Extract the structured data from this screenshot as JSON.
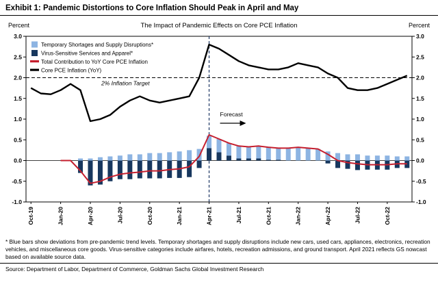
{
  "exhibit": {
    "title": "Exhibit 1: Pandemic Distortions to Core Inflation Should Peak in April and May",
    "footnote": "* Blue bars show deviations from pre-pandemic trend levels.  Temporary shortages and supply disruptions include new cars, used cars, appliances, electronics, recreation vehicles, and miscellaneous core goods. Virus-sensitive categories include airfares, hotels, recreation admissions, and ground transport. April 2021 reflects GS nowcast based on available source data.",
    "source": "Source: Department of Labor, Department of Commerce, Goldman Sachs Global Investment Research"
  },
  "chart_data": {
    "type": "bar",
    "subtype": "stacked-bar-plus-line-combo",
    "title": "The Impact of Pandemic Effects on Core PCE Inflation",
    "ylabel_left": "Percent",
    "ylabel_right": "Percent",
    "ylim": [
      -1.0,
      3.0
    ],
    "ytick_step": 0.5,
    "grid": "dashed line at 2.0 only",
    "legend_position": "top-left",
    "xtick_every": 3,
    "categories": [
      "Oct-19",
      "Nov-19",
      "Dec-19",
      "Jan-20",
      "Feb-20",
      "Mar-20",
      "Apr-20",
      "May-20",
      "Jun-20",
      "Jul-20",
      "Aug-20",
      "Sep-20",
      "Oct-20",
      "Nov-20",
      "Dec-20",
      "Jan-21",
      "Feb-21",
      "Mar-21",
      "Apr-21",
      "May-21",
      "Jun-21",
      "Jul-21",
      "Aug-21",
      "Sep-21",
      "Oct-21",
      "Nov-21",
      "Dec-21",
      "Jan-22",
      "Feb-22",
      "Mar-22",
      "Apr-22",
      "May-22",
      "Jun-22",
      "Jul-22",
      "Aug-22",
      "Sep-22",
      "Oct-22",
      "Nov-22",
      "Dec-22"
    ],
    "series": [
      {
        "name": "Temporary Shortages and Supply Disruptions*",
        "type": "bar",
        "color": "#8db4e2",
        "values": [
          0,
          0,
          0,
          0,
          0,
          0.05,
          0.05,
          0.08,
          0.1,
          0.12,
          0.15,
          0.15,
          0.18,
          0.18,
          0.2,
          0.22,
          0.25,
          0.28,
          0.3,
          0.32,
          0.3,
          0.3,
          0.28,
          0.3,
          0.3,
          0.28,
          0.3,
          0.32,
          0.3,
          0.28,
          0.22,
          0.18,
          0.15,
          0.15,
          0.12,
          0.12,
          0.12,
          0.1,
          0.1
        ]
      },
      {
        "name": "Virus-Sensitive Services and Apparel*",
        "type": "bar",
        "color": "#17375e",
        "values": [
          0,
          0,
          0,
          0,
          0,
          -0.3,
          -0.6,
          -0.58,
          -0.5,
          -0.45,
          -0.45,
          -0.43,
          -0.43,
          -0.43,
          -0.42,
          -0.42,
          -0.4,
          -0.18,
          0.3,
          0.2,
          0.12,
          0.05,
          0.05,
          0.05,
          0.02,
          0.02,
          0.0,
          0.0,
          0.0,
          0.0,
          -0.07,
          -0.18,
          -0.2,
          -0.23,
          -0.22,
          -0.22,
          -0.22,
          -0.18,
          -0.18
        ]
      },
      {
        "name": "Total Contribution to YoY Core PCE Inflation",
        "type": "line",
        "color": "#c51f2e",
        "values": [
          null,
          null,
          null,
          0.0,
          0.0,
          -0.25,
          -0.55,
          -0.5,
          -0.4,
          -0.33,
          -0.3,
          -0.28,
          -0.25,
          -0.25,
          -0.22,
          -0.2,
          -0.15,
          0.1,
          0.62,
          0.52,
          0.42,
          0.35,
          0.33,
          0.35,
          0.32,
          0.3,
          0.3,
          0.32,
          0.3,
          0.28,
          0.15,
          0.0,
          -0.05,
          -0.08,
          -0.1,
          -0.1,
          -0.1,
          -0.08,
          -0.08
        ]
      },
      {
        "name": "Core PCE Inflation (YoY)",
        "type": "line",
        "color": "#000000",
        "values": [
          1.75,
          1.62,
          1.6,
          1.7,
          1.85,
          1.7,
          0.95,
          1.0,
          1.1,
          1.3,
          1.45,
          1.55,
          1.45,
          1.4,
          1.45,
          1.5,
          1.55,
          2.0,
          2.8,
          2.7,
          2.55,
          2.4,
          2.3,
          2.25,
          2.2,
          2.2,
          2.25,
          2.35,
          2.3,
          2.25,
          2.1,
          2.0,
          1.75,
          1.7,
          1.7,
          1.75,
          1.85,
          1.95,
          2.05
        ]
      }
    ],
    "annotations": {
      "target_line": {
        "y": 2.0,
        "label": "2% Inflation Target",
        "color": "#000000"
      },
      "forecast": {
        "x_index": 18,
        "label": "Forecast",
        "line_color": "#1f3864"
      }
    }
  }
}
